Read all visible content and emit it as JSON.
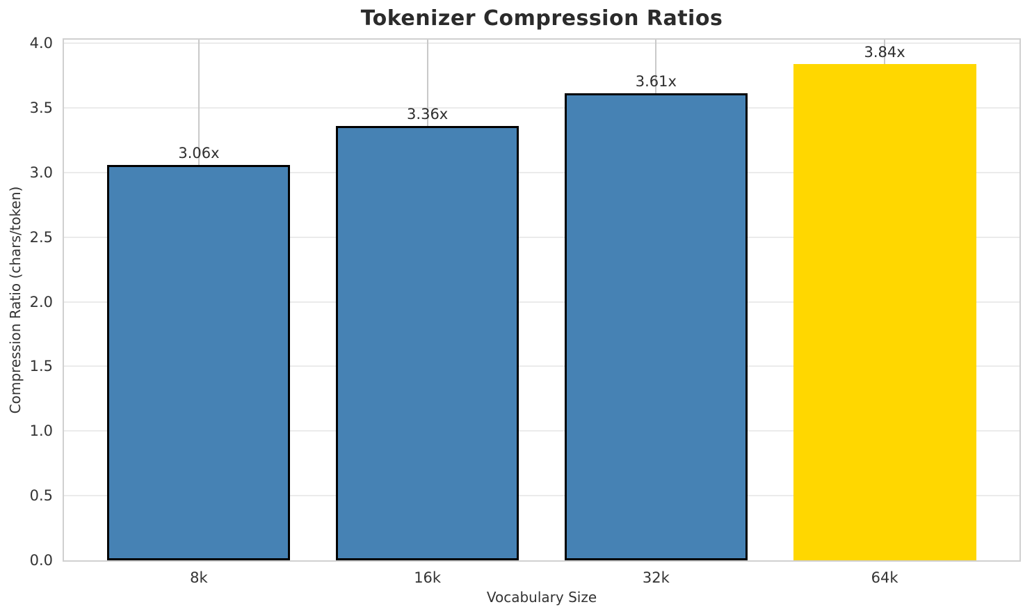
{
  "chart_data": {
    "type": "bar",
    "title": "Tokenizer Compression Ratios",
    "xlabel": "Vocabulary Size",
    "ylabel": "Compression Ratio (chars/token)",
    "categories": [
      "8k",
      "16k",
      "32k",
      "64k"
    ],
    "values": [
      3.06,
      3.36,
      3.61,
      3.84
    ],
    "bar_labels": [
      "3.06x",
      "3.36x",
      "3.61x",
      "3.84x"
    ],
    "bar_colors": [
      "#4682B4",
      "#4682B4",
      "#4682B4",
      "#FFD700"
    ],
    "bar_edge_colors": [
      "#000000",
      "#000000",
      "#000000",
      "#FFD700"
    ],
    "highlighted_category": "64k",
    "ylim": [
      0,
      4.027
    ],
    "xlim": [
      -0.59,
      3.59
    ],
    "bar_width_fraction": 0.8,
    "yticks": [
      0.0,
      0.5,
      1.0,
      1.5,
      2.0,
      2.5,
      3.0,
      3.5,
      4.0
    ],
    "ytick_labels": [
      "0.0",
      "0.5",
      "1.0",
      "1.5",
      "2.0",
      "2.5",
      "3.0",
      "3.5",
      "4.0"
    ],
    "grid": true,
    "legend": "none",
    "colors": {
      "bar_default": "#4682B4",
      "bar_highlight": "#FFD700",
      "bar_edge": "#000000",
      "grid_horizontal": "#ebebeb",
      "grid_vertical": "#c9c9c9",
      "spine": "#d0d0d0",
      "title_text": "#2b2b2b",
      "tick_text": "#333333"
    }
  }
}
